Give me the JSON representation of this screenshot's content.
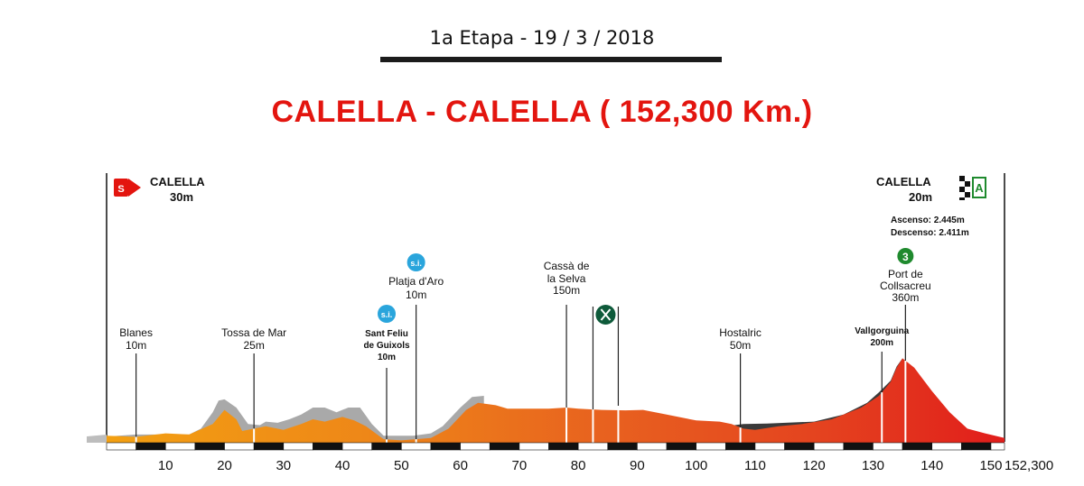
{
  "header": {
    "stage_line": "1a Etapa - 19 / 3 / 2018",
    "route_title": "CALELLA - CALELLA ( 152,300 Km.)"
  },
  "start": {
    "badge": "S",
    "name": "CALELLA",
    "alt": "30m"
  },
  "finish": {
    "name": "CALELLA",
    "alt": "20m",
    "badge": "A"
  },
  "stats": {
    "ascent": "Ascenso:  2.445m",
    "descent": "Descenso: 2.411m"
  },
  "colors": {
    "title_red": "#e3150f",
    "start_badge": "#e3150f",
    "sprint_badge": "#2aa5dc",
    "kom_badge": "#1f8a2e",
    "feed_badge": "#0e5a3a"
  },
  "chart_data": {
    "type": "area",
    "title": "CALELLA - CALELLA ( 152,300 Km.)",
    "xlabel": "",
    "ylabel": "",
    "x_unit": "km",
    "y_unit": "m",
    "xlim": [
      0,
      152.3
    ],
    "ylim": [
      0,
      400
    ],
    "x_ticks": [
      "10",
      "20",
      "30",
      "40",
      "50",
      "60",
      "70",
      "80",
      "90",
      "100",
      "110",
      "120",
      "130",
      "140",
      "150"
    ],
    "x_end_label": "152,300",
    "grid": false,
    "profile": [
      [
        0,
        30
      ],
      [
        5,
        25
      ],
      [
        10,
        40
      ],
      [
        14,
        35
      ],
      [
        18,
        80
      ],
      [
        20,
        140
      ],
      [
        22,
        100
      ],
      [
        23,
        50
      ],
      [
        27,
        70
      ],
      [
        30,
        55
      ],
      [
        33,
        80
      ],
      [
        35,
        100
      ],
      [
        37,
        90
      ],
      [
        40,
        110
      ],
      [
        42,
        95
      ],
      [
        44,
        70
      ],
      [
        47,
        15
      ],
      [
        50,
        10
      ],
      [
        55,
        20
      ],
      [
        58,
        60
      ],
      [
        61,
        140
      ],
      [
        63,
        170
      ],
      [
        66,
        160
      ],
      [
        68,
        145
      ],
      [
        72,
        145
      ],
      [
        75,
        145
      ],
      [
        78,
        150
      ],
      [
        80,
        145
      ],
      [
        84,
        140
      ],
      [
        88,
        138
      ],
      [
        91,
        140
      ],
      [
        95,
        120
      ],
      [
        97,
        110
      ],
      [
        100,
        95
      ],
      [
        104,
        90
      ],
      [
        106,
        80
      ],
      [
        108,
        60
      ],
      [
        110,
        55
      ],
      [
        114,
        70
      ],
      [
        118,
        80
      ],
      [
        123,
        100
      ],
      [
        128,
        150
      ],
      [
        131,
        200
      ],
      [
        133,
        260
      ],
      [
        134,
        320
      ],
      [
        135,
        360
      ],
      [
        137,
        320
      ],
      [
        140,
        220
      ],
      [
        143,
        130
      ],
      [
        146,
        60
      ],
      [
        149,
        40
      ],
      [
        152.3,
        20
      ]
    ],
    "shadows": [
      [
        [
          0,
          25
        ],
        [
          2,
          30
        ],
        [
          5,
          35
        ],
        [
          14,
          35
        ],
        [
          16,
          60
        ],
        [
          18,
          130
        ],
        [
          19,
          180
        ],
        [
          20,
          185
        ],
        [
          22,
          150
        ],
        [
          24,
          80
        ],
        [
          26,
          75
        ],
        [
          27,
          90
        ],
        [
          29,
          85
        ],
        [
          31,
          100
        ],
        [
          33,
          120
        ],
        [
          35,
          150
        ],
        [
          37,
          150
        ],
        [
          39,
          130
        ],
        [
          41,
          150
        ],
        [
          43,
          150
        ],
        [
          45,
          80
        ],
        [
          47,
          30
        ],
        [
          52,
          30
        ],
        [
          55,
          40
        ],
        [
          57,
          70
        ],
        [
          60,
          150
        ],
        [
          62,
          195
        ],
        [
          64,
          200
        ]
      ],
      [
        [
          105,
          70
        ],
        [
          108,
          80
        ],
        [
          112,
          82
        ],
        [
          120,
          90
        ],
        [
          125,
          120
        ],
        [
          129,
          170
        ],
        [
          131,
          215
        ],
        [
          133,
          265
        ],
        [
          134,
          325
        ],
        [
          135,
          360
        ]
      ]
    ],
    "markers": [
      {
        "km": 5,
        "name": "Blanes",
        "alt": "10m",
        "type": "place"
      },
      {
        "km": 25,
        "name": "Tossa de Mar",
        "alt": "25m",
        "type": "place"
      },
      {
        "km": 47.5,
        "name": "Sant Feliu de Guixols",
        "alt": "10m",
        "type": "sprint",
        "badge": "s.i."
      },
      {
        "km": 52.5,
        "name": "Platja d'Aro",
        "alt": "10m",
        "type": "sprint",
        "badge": "s.i."
      },
      {
        "km": 78,
        "name": "Cassà de la Selva",
        "alt": "150m",
        "type": "place"
      },
      {
        "km": 82.5,
        "name": "",
        "alt": "",
        "type": "feed"
      },
      {
        "km": 107.5,
        "name": "Hostalric",
        "alt": "50m",
        "type": "place"
      },
      {
        "km": 131.5,
        "name": "Vallgorguina",
        "alt": "200m",
        "type": "place"
      },
      {
        "km": 135.5,
        "name": "Port de Collsacreu",
        "alt": "360m",
        "type": "kom",
        "badge": "3"
      }
    ]
  }
}
